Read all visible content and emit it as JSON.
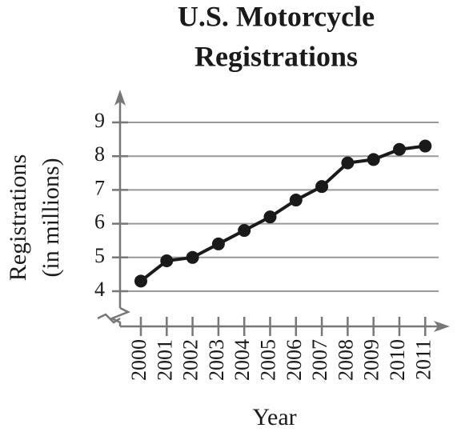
{
  "chart_data": {
    "type": "line",
    "title": [
      "U.S. Motorcycle",
      "Registrations"
    ],
    "x_label": "Year",
    "y_label": [
      "Registrations",
      "(in millions)"
    ],
    "categories": [
      "2000",
      "2001",
      "2002",
      "2003",
      "2004",
      "2005",
      "2006",
      "2007",
      "2008",
      "2009",
      "2010",
      "2011"
    ],
    "values": [
      4.3,
      4.9,
      5.0,
      5.4,
      5.8,
      6.2,
      6.7,
      7.1,
      7.8,
      7.9,
      8.2,
      8.3
    ],
    "color": "#1a1a1a",
    "ylim": [
      4,
      9
    ],
    "yticks": [
      4,
      5,
      6,
      7,
      8,
      9
    ],
    "grid": true
  }
}
